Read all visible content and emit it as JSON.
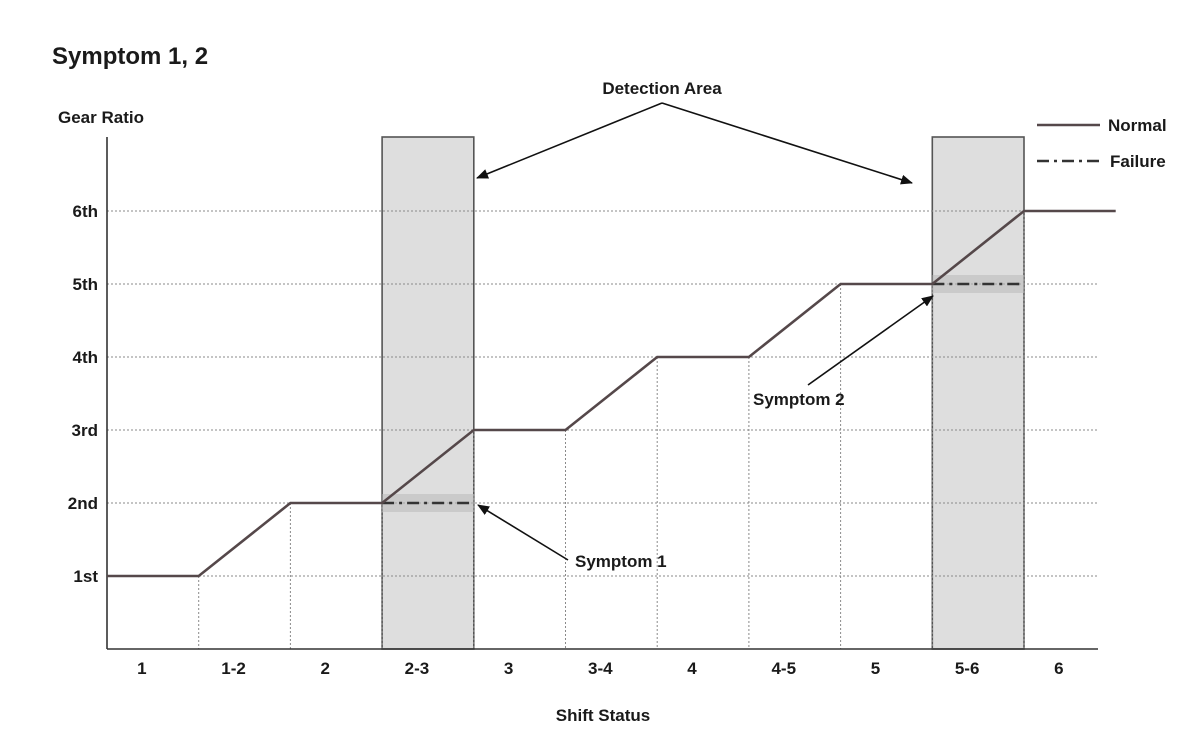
{
  "chart_data": {
    "type": "line",
    "title": "Symptom 1, 2",
    "ylabel": "Gear Ratio",
    "xlabel": "Shift Status",
    "categories": [
      "1",
      "1-2",
      "2",
      "2-3",
      "3",
      "3-4",
      "4",
      "4-5",
      "5",
      "5-6",
      "6"
    ],
    "y_levels": [
      "1st",
      "2nd",
      "3rd",
      "4th",
      "5th",
      "6th"
    ],
    "ylim": [
      0,
      7
    ],
    "grid": true,
    "legend_position": "top-right",
    "series": [
      {
        "name": "Normal",
        "style": "solid",
        "points": [
          [
            0,
            1
          ],
          [
            1,
            1
          ],
          [
            2,
            2
          ],
          [
            3,
            2
          ],
          [
            4,
            3
          ],
          [
            5,
            3
          ],
          [
            6,
            4
          ],
          [
            7,
            4
          ],
          [
            8,
            5
          ],
          [
            9,
            5
          ],
          [
            10,
            6
          ],
          [
            11,
            6
          ]
        ]
      },
      {
        "name": "Failure",
        "style": "dash-dot",
        "segments": [
          [
            [
              3,
              2
            ],
            [
              4,
              2
            ]
          ],
          [
            [
              9,
              5
            ],
            [
              10,
              5
            ]
          ]
        ]
      }
    ],
    "detection_areas": [
      {
        "category": "2-3",
        "x_range": [
          3,
          4
        ]
      },
      {
        "category": "5-6",
        "x_range": [
          9,
          10
        ]
      }
    ],
    "annotations": {
      "detection_area": "Detection Area",
      "symptom1": "Symptom 1",
      "symptom2": "Symptom 2"
    }
  },
  "colors": {
    "line": "#55484a",
    "failure": "#333333",
    "area_fill": "#dedede",
    "grid": "#8a8a8a",
    "axis": "#333333"
  }
}
